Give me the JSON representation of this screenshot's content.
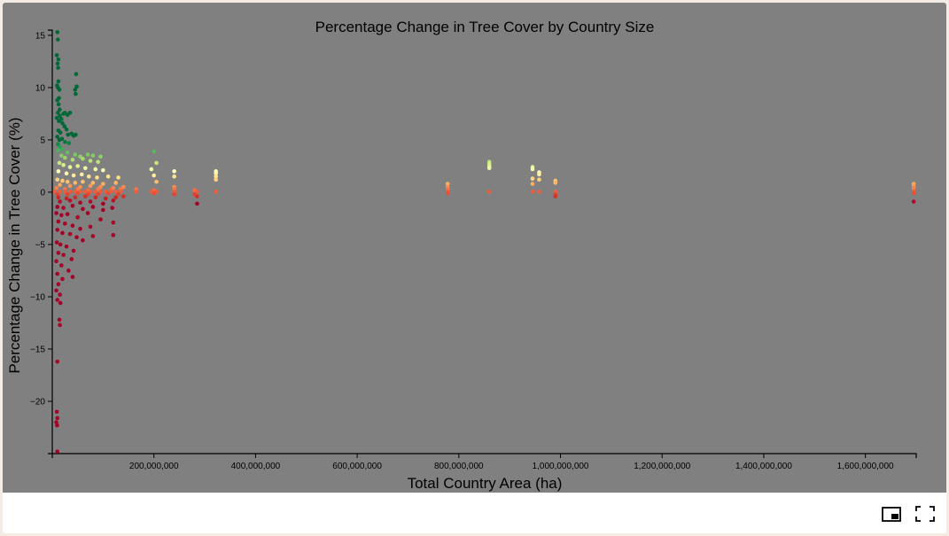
{
  "chart_data": {
    "type": "scatter",
    "title": "Percentage Change in Tree Cover by Country Size",
    "xlabel": "Total Country Area (ha)",
    "ylabel": "Percentage Change in Tree Cover (%)",
    "xlim": [
      0,
      1700000000
    ],
    "ylim": [
      -25,
      15.5
    ],
    "x_ticks": [
      200000000,
      400000000,
      600000000,
      800000000,
      1000000000,
      1200000000,
      1400000000,
      1600000000
    ],
    "x_tick_labels": [
      "200,000,000",
      "400,000,000",
      "600,000,000",
      "800,000,000",
      "1,000,000,000",
      "1,200,000,000",
      "1,400,000,000",
      "1,600,000,000"
    ],
    "y_ticks": [
      15,
      10,
      5,
      0,
      -5,
      -10,
      -15,
      -20
    ],
    "y_tick_labels": [
      "15",
      "10",
      "5",
      "0",
      "−5",
      "−10",
      "−15",
      "−20"
    ],
    "color_scale": "RdYlGn",
    "color_range": [
      -1,
      5
    ],
    "grid": false,
    "points": [
      [
        10000000,
        15.3
      ],
      [
        11000000,
        14.6
      ],
      [
        9000000,
        13.1
      ],
      [
        12000000,
        12.7
      ],
      [
        10500000,
        12.3
      ],
      [
        11500000,
        11.9
      ],
      [
        12000000,
        10.6
      ],
      [
        9500000,
        10.2
      ],
      [
        11000000,
        10.0
      ],
      [
        14000000,
        9.8
      ],
      [
        47000000,
        11.3
      ],
      [
        48000000,
        10.1
      ],
      [
        45000000,
        9.8
      ],
      [
        46000000,
        9.4
      ],
      [
        13000000,
        9.0
      ],
      [
        10000000,
        8.8
      ],
      [
        12500000,
        8.4
      ],
      [
        14500000,
        7.9
      ],
      [
        11000000,
        7.6
      ],
      [
        15000000,
        7.3
      ],
      [
        18000000,
        7.0
      ],
      [
        22000000,
        7.5
      ],
      [
        25000000,
        7.6
      ],
      [
        30000000,
        7.4
      ],
      [
        35000000,
        7.6
      ],
      [
        9000000,
        7.1
      ],
      [
        13000000,
        6.8
      ],
      [
        20000000,
        6.6
      ],
      [
        24000000,
        6.3
      ],
      [
        28000000,
        6.0
      ],
      [
        12000000,
        5.9
      ],
      [
        16000000,
        5.7
      ],
      [
        31000000,
        5.5
      ],
      [
        38000000,
        5.6
      ],
      [
        42000000,
        5.4
      ],
      [
        46000000,
        5.5
      ],
      [
        10000000,
        5.3
      ],
      [
        14000000,
        5.0
      ],
      [
        19000000,
        5.1
      ],
      [
        25000000,
        4.8
      ],
      [
        33000000,
        4.7
      ],
      [
        11000000,
        4.6
      ],
      [
        15000000,
        4.3
      ],
      [
        20000000,
        4.1
      ],
      [
        200000000,
        3.9
      ],
      [
        12000000,
        4.0
      ],
      [
        30000000,
        3.8
      ],
      [
        45000000,
        3.6
      ],
      [
        55000000,
        3.4
      ],
      [
        70000000,
        3.6
      ],
      [
        80000000,
        3.5
      ],
      [
        95000000,
        3.4
      ],
      [
        18000000,
        3.5
      ],
      [
        25000000,
        3.3
      ],
      [
        40000000,
        3.1
      ],
      [
        60000000,
        3.2
      ],
      [
        75000000,
        3.0
      ],
      [
        90000000,
        2.9
      ],
      [
        205000000,
        2.8
      ],
      [
        860000000,
        2.9
      ],
      [
        860000000,
        2.7
      ],
      [
        860000000,
        2.5
      ],
      [
        860000000,
        2.3
      ],
      [
        945000000,
        2.4
      ],
      [
        945000000,
        2.2
      ],
      [
        14000000,
        2.8
      ],
      [
        22000000,
        2.6
      ],
      [
        35000000,
        2.4
      ],
      [
        50000000,
        2.5
      ],
      [
        65000000,
        2.3
      ],
      [
        85000000,
        2.2
      ],
      [
        100000000,
        2.1
      ],
      [
        195000000,
        2.2
      ],
      [
        240000000,
        2.0
      ],
      [
        322000000,
        2.0
      ],
      [
        322000000,
        1.8
      ],
      [
        958000000,
        1.9
      ],
      [
        958000000,
        1.7
      ],
      [
        12000000,
        2.0
      ],
      [
        28000000,
        1.8
      ],
      [
        42000000,
        1.6
      ],
      [
        58000000,
        1.7
      ],
      [
        72000000,
        1.5
      ],
      [
        88000000,
        1.4
      ],
      [
        110000000,
        1.5
      ],
      [
        130000000,
        1.4
      ],
      [
        200000000,
        1.6
      ],
      [
        240000000,
        1.5
      ],
      [
        322000000,
        1.5
      ],
      [
        322000000,
        1.2
      ],
      [
        945000000,
        1.3
      ],
      [
        958000000,
        1.2
      ],
      [
        990000000,
        1.1
      ],
      [
        10000000,
        1.2
      ],
      [
        20000000,
        1.1
      ],
      [
        30000000,
        1.0
      ],
      [
        45000000,
        0.9
      ],
      [
        60000000,
        1.0
      ],
      [
        80000000,
        0.9
      ],
      [
        100000000,
        0.8
      ],
      [
        125000000,
        0.9
      ],
      [
        205000000,
        1.0
      ],
      [
        945000000,
        0.8
      ],
      [
        990000000,
        0.9
      ],
      [
        778000000,
        0.8
      ],
      [
        1695000000,
        0.8
      ],
      [
        1695000000,
        0.6
      ],
      [
        15000000,
        0.7
      ],
      [
        35000000,
        0.6
      ],
      [
        55000000,
        0.5
      ],
      [
        75000000,
        0.6
      ],
      [
        95000000,
        0.5
      ],
      [
        120000000,
        0.4
      ],
      [
        140000000,
        0.5
      ],
      [
        240000000,
        0.5
      ],
      [
        778000000,
        0.5
      ],
      [
        1695000000,
        0.4
      ],
      [
        8000000,
        0.4
      ],
      [
        25000000,
        0.3
      ],
      [
        50000000,
        0.3
      ],
      [
        70000000,
        0.2
      ],
      [
        90000000,
        0.3
      ],
      [
        115000000,
        0.2
      ],
      [
        135000000,
        0.3
      ],
      [
        165000000,
        0.3
      ],
      [
        200000000,
        0.2
      ],
      [
        240000000,
        0.3
      ],
      [
        280000000,
        0.2
      ],
      [
        778000000,
        0.3
      ],
      [
        5000000,
        0.05
      ],
      [
        15000000,
        0.05
      ],
      [
        25000000,
        0.05
      ],
      [
        35000000,
        0.05
      ],
      [
        45000000,
        0.05
      ],
      [
        55000000,
        0.05
      ],
      [
        65000000,
        0.05
      ],
      [
        75000000,
        0.05
      ],
      [
        85000000,
        0.05
      ],
      [
        95000000,
        0.05
      ],
      [
        105000000,
        0.05
      ],
      [
        115000000,
        0.05
      ],
      [
        125000000,
        0.05
      ],
      [
        135000000,
        0.05
      ],
      [
        165000000,
        0.05
      ],
      [
        195000000,
        0.05
      ],
      [
        205000000,
        0.05
      ],
      [
        240000000,
        0.05
      ],
      [
        285000000,
        0.05
      ],
      [
        322000000,
        0.05
      ],
      [
        778000000,
        0.05
      ],
      [
        860000000,
        0.05
      ],
      [
        945000000,
        0.05
      ],
      [
        958000000,
        0.05
      ],
      [
        990000000,
        0.05
      ],
      [
        1695000000,
        0.05
      ],
      [
        10000000,
        -0.2
      ],
      [
        30000000,
        -0.2
      ],
      [
        50000000,
        -0.1
      ],
      [
        70000000,
        -0.2
      ],
      [
        90000000,
        -0.2
      ],
      [
        110000000,
        -0.1
      ],
      [
        130000000,
        -0.2
      ],
      [
        200000000,
        -0.1
      ],
      [
        240000000,
        -0.2
      ],
      [
        280000000,
        -0.2
      ],
      [
        778000000,
        -0.1
      ],
      [
        990000000,
        -0.2
      ],
      [
        1695000000,
        -0.1
      ],
      [
        12000000,
        -0.5
      ],
      [
        28000000,
        -0.6
      ],
      [
        45000000,
        -0.5
      ],
      [
        65000000,
        -0.4
      ],
      [
        85000000,
        -0.5
      ],
      [
        105000000,
        -0.6
      ],
      [
        125000000,
        -0.5
      ],
      [
        140000000,
        -0.4
      ],
      [
        285000000,
        -0.4
      ],
      [
        990000000,
        -0.4
      ],
      [
        15000000,
        -0.9
      ],
      [
        35000000,
        -0.8
      ],
      [
        55000000,
        -1.0
      ],
      [
        75000000,
        -0.9
      ],
      [
        100000000,
        -1.1
      ],
      [
        120000000,
        -0.8
      ],
      [
        285000000,
        -1.1
      ],
      [
        1695000000,
        -0.9
      ],
      [
        10000000,
        -1.4
      ],
      [
        22000000,
        -1.5
      ],
      [
        40000000,
        -1.3
      ],
      [
        60000000,
        -1.6
      ],
      [
        80000000,
        -1.4
      ],
      [
        100000000,
        -1.7
      ],
      [
        118000000,
        -1.5
      ],
      [
        8000000,
        -2.0
      ],
      [
        18000000,
        -2.2
      ],
      [
        30000000,
        -2.1
      ],
      [
        50000000,
        -2.4
      ],
      [
        70000000,
        -2.0
      ],
      [
        95000000,
        -2.6
      ],
      [
        120000000,
        -2.9
      ],
      [
        12000000,
        -2.8
      ],
      [
        25000000,
        -3.0
      ],
      [
        40000000,
        -3.2
      ],
      [
        55000000,
        -3.5
      ],
      [
        75000000,
        -3.3
      ],
      [
        120000000,
        -4.1
      ],
      [
        10000000,
        -3.6
      ],
      [
        20000000,
        -3.9
      ],
      [
        35000000,
        -4.0
      ],
      [
        48000000,
        -4.3
      ],
      [
        60000000,
        -4.6
      ],
      [
        80000000,
        -4.2
      ],
      [
        9000000,
        -4.8
      ],
      [
        16000000,
        -5.0
      ],
      [
        28000000,
        -5.2
      ],
      [
        42000000,
        -5.6
      ],
      [
        12000000,
        -5.8
      ],
      [
        22000000,
        -6.0
      ],
      [
        38000000,
        -6.4
      ],
      [
        8000000,
        -6.6
      ],
      [
        18000000,
        -7.0
      ],
      [
        32000000,
        -7.5
      ],
      [
        40000000,
        -8.1
      ],
      [
        10000000,
        -7.8
      ],
      [
        20000000,
        -8.3
      ],
      [
        12000000,
        -8.8
      ],
      [
        8000000,
        -9.4
      ],
      [
        15000000,
        -9.8
      ],
      [
        10000000,
        -10.3
      ],
      [
        16000000,
        -10.6
      ],
      [
        14000000,
        -12.2
      ],
      [
        15000000,
        -12.7
      ],
      [
        10000000,
        -16.2
      ],
      [
        9000000,
        -21.0
      ],
      [
        10000000,
        -21.6
      ],
      [
        8000000,
        -22.0
      ],
      [
        9500000,
        -22.3
      ],
      [
        10000000,
        -24.8
      ]
    ]
  }
}
